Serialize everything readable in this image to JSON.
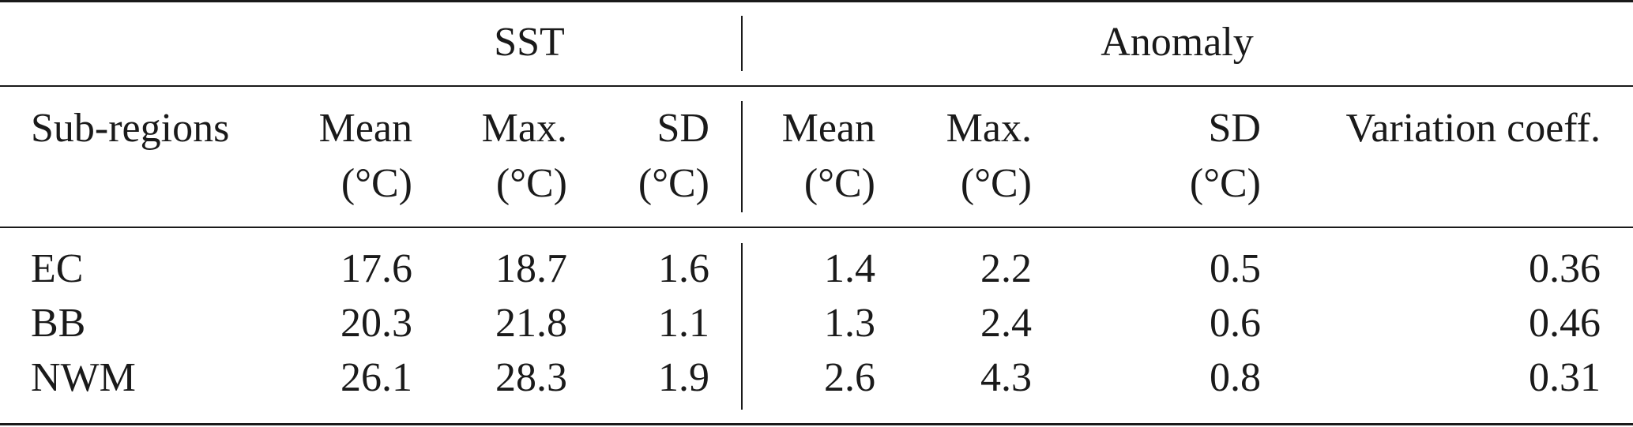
{
  "group_headers": {
    "sst": "SST",
    "anomaly": "Anomaly"
  },
  "column_headers": {
    "sub_regions": "Sub-regions",
    "sst_mean": [
      "Mean",
      "(°C)"
    ],
    "sst_max": [
      "Max.",
      "(°C)"
    ],
    "sst_sd": [
      "SD",
      "(°C)"
    ],
    "anom_mean": [
      "Mean",
      "(°C)"
    ],
    "anom_max": [
      "Max.",
      "(°C)"
    ],
    "anom_sd": [
      "SD",
      "(°C)"
    ],
    "variation": "Variation coeff."
  },
  "rows": [
    {
      "region": "EC",
      "sst_mean": "17.6",
      "sst_max": "18.7",
      "sst_sd": "1.6",
      "anom_mean": "1.4",
      "anom_max": "2.2",
      "anom_sd": "0.5",
      "variation": "0.36"
    },
    {
      "region": "BB",
      "sst_mean": "20.3",
      "sst_max": "21.8",
      "sst_sd": "1.1",
      "anom_mean": "1.3",
      "anom_max": "2.4",
      "anom_sd": "0.6",
      "variation": "0.46"
    },
    {
      "region": "NWM",
      "sst_mean": "26.1",
      "sst_max": "28.3",
      "sst_sd": "1.9",
      "anom_mean": "2.6",
      "anom_max": "4.3",
      "anom_sd": "0.8",
      "variation": "0.31"
    }
  ]
}
